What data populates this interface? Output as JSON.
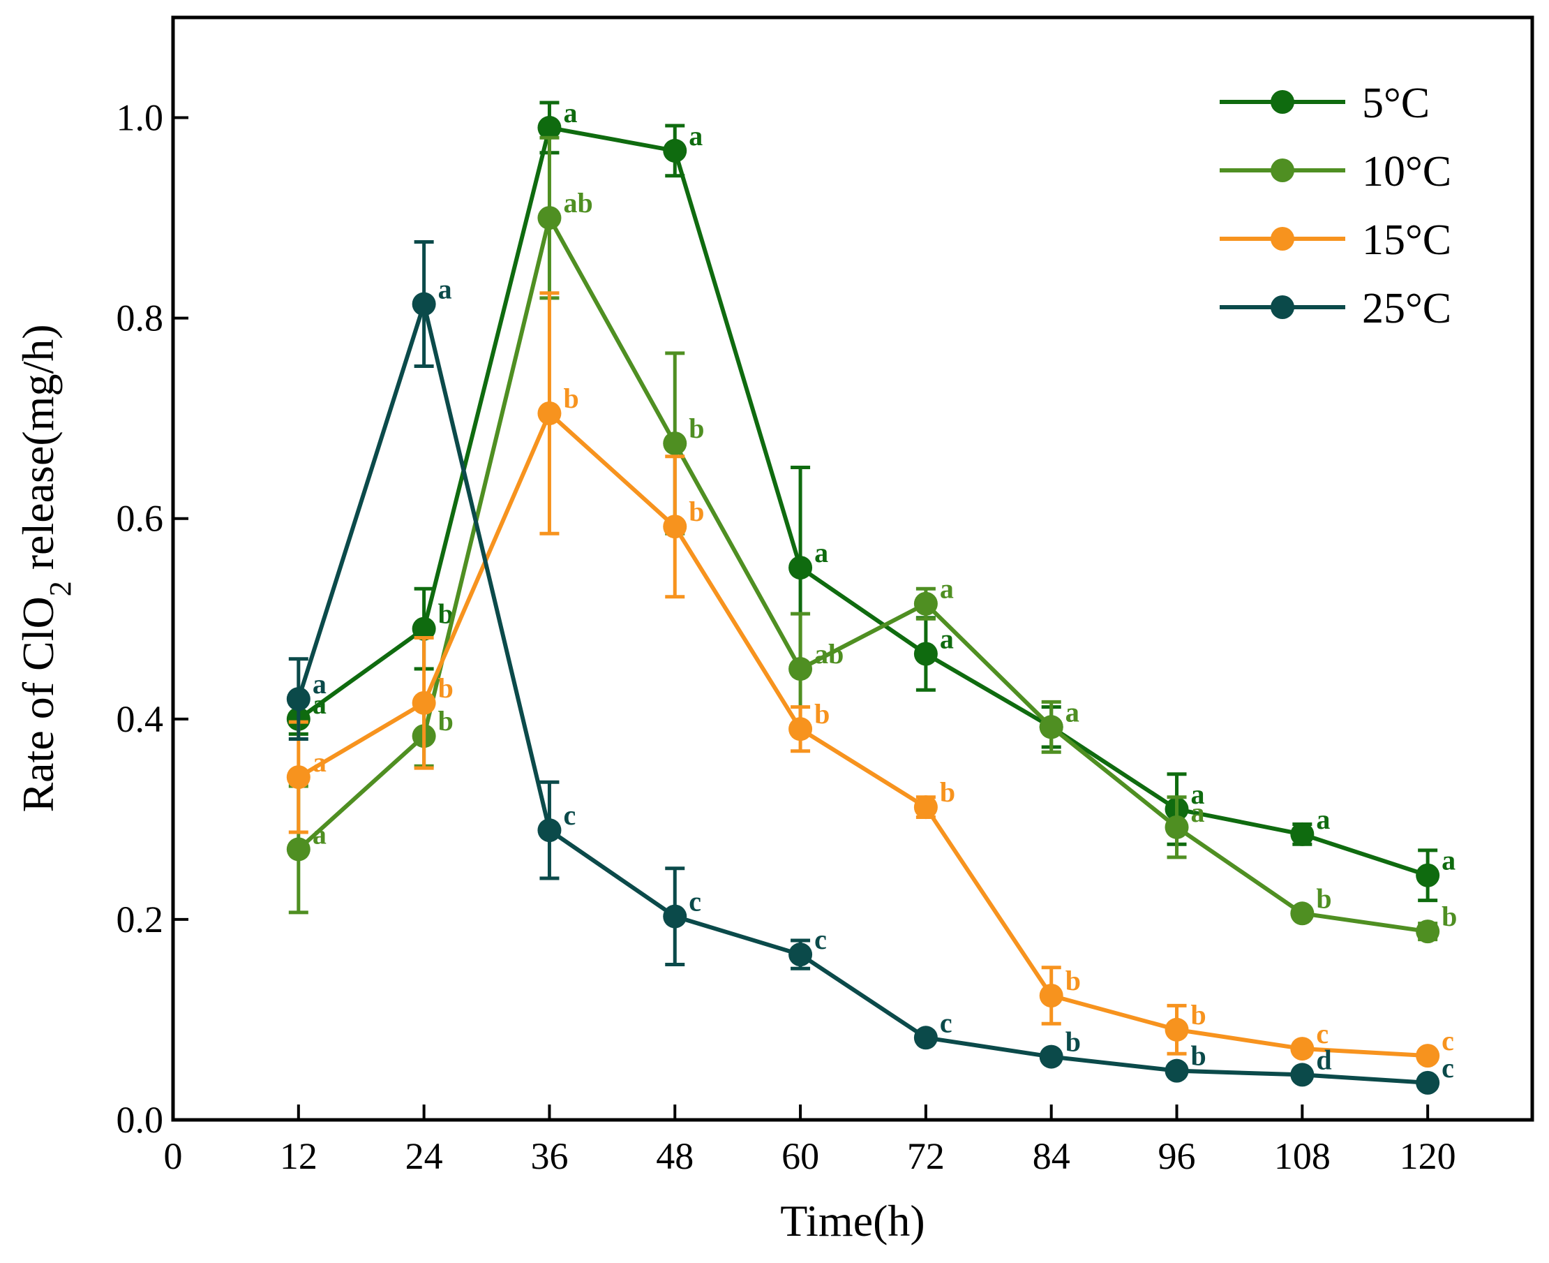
{
  "chart_data": {
    "type": "line",
    "xlabel": "Time(h)",
    "ylabel_parts": {
      "before": "Rate of ClO",
      "subscript": "2",
      "after": " release(mg/h)"
    },
    "x": [
      12,
      24,
      36,
      48,
      60,
      72,
      84,
      96,
      108,
      120
    ],
    "xlim": [
      0,
      130
    ],
    "ylim": [
      0,
      1.1
    ],
    "xticks": [
      "0",
      "12",
      "24",
      "36",
      "48",
      "60",
      "72",
      "84",
      "96",
      "108",
      "120"
    ],
    "yticks": [
      "0.0",
      "0.2",
      "0.4",
      "0.6",
      "0.8",
      "1.0"
    ],
    "legend_position": "top-right",
    "series": [
      {
        "name": "5°C",
        "color": "#0f6b0f",
        "values": [
          0.4,
          0.49,
          0.99,
          0.967,
          0.551,
          0.465,
          0.392,
          0.31,
          0.285,
          0.244
        ],
        "errors": [
          0.015,
          0.04,
          0.025,
          0.025,
          0.1,
          0.036,
          0.02,
          0.035,
          0.01,
          0.025
        ],
        "labels": [
          "a",
          "b",
          "a",
          "a",
          "a",
          "a",
          "a",
          "a",
          "a",
          "a"
        ]
      },
      {
        "name": "10°C",
        "color": "#4f8f22",
        "values": [
          0.27,
          0.383,
          0.9,
          0.675,
          0.45,
          0.515,
          0.392,
          0.292,
          0.206,
          0.188
        ],
        "errors": [
          0.063,
          0.03,
          0.08,
          0.09,
          0.055,
          0.015,
          0.025,
          0.03,
          0.005,
          0.008
        ],
        "labels": [
          "a",
          "b",
          "ab",
          "b",
          "ab",
          "a",
          "a",
          "a",
          "b",
          "b"
        ]
      },
      {
        "name": "15°C",
        "color": "#f7931e",
        "values": [
          0.342,
          0.416,
          0.705,
          0.592,
          0.39,
          0.312,
          0.124,
          0.09,
          0.071,
          0.064
        ],
        "errors": [
          0.055,
          0.065,
          0.12,
          0.07,
          0.022,
          0.01,
          0.028,
          0.024,
          0.005,
          0.004
        ],
        "labels": [
          "a",
          "b",
          "b",
          "b",
          "b",
          "b",
          "b",
          "b",
          "c",
          "c"
        ]
      },
      {
        "name": "25°C",
        "color": "#0b4a4a",
        "values": [
          0.42,
          0.814,
          0.289,
          0.203,
          0.165,
          0.082,
          0.063,
          0.049,
          0.045,
          0.037
        ],
        "errors": [
          0.04,
          0.062,
          0.048,
          0.048,
          0.014,
          0.004,
          0.004,
          0.004,
          0.004,
          0.004
        ],
        "labels": [
          "a",
          "a",
          "c",
          "c",
          "c",
          "c",
          "b",
          "b",
          "d",
          "c"
        ]
      }
    ]
  }
}
